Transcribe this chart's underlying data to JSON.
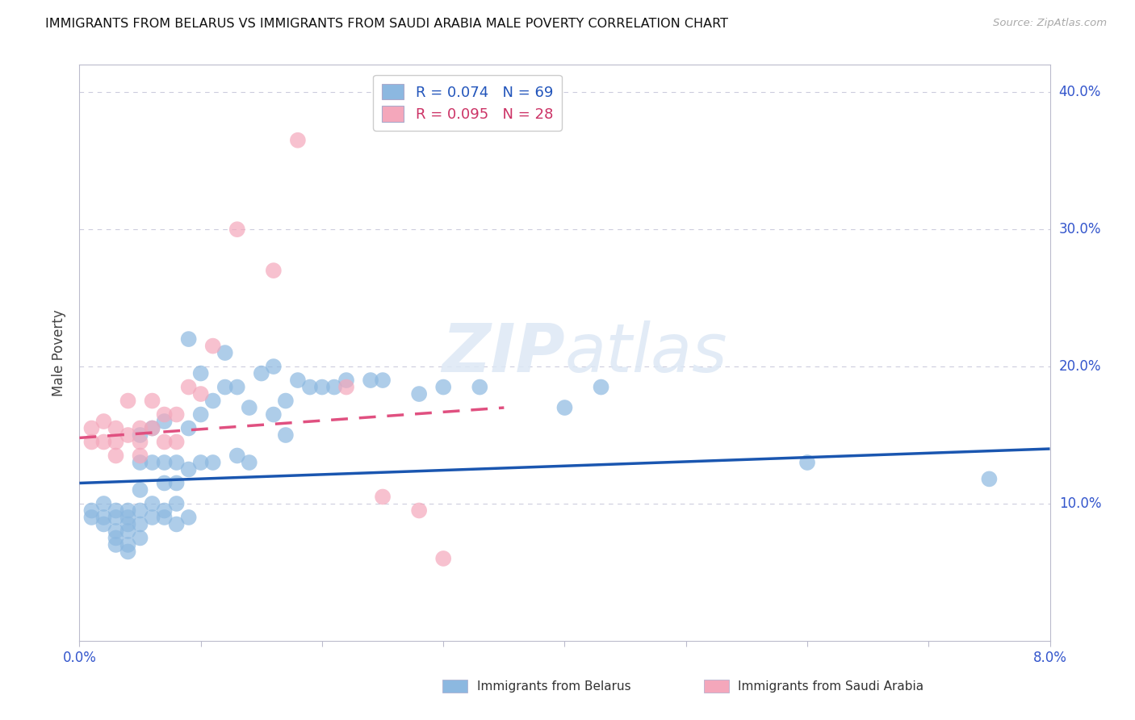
{
  "title": "IMMIGRANTS FROM BELARUS VS IMMIGRANTS FROM SAUDI ARABIA MALE POVERTY CORRELATION CHART",
  "source": "Source: ZipAtlas.com",
  "ylabel": "Male Poverty",
  "watermark": "ZIPatlas",
  "belarus_color": "#8cb8e0",
  "saudi_color": "#f4a7bb",
  "belarus_line_color": "#1a56b0",
  "saudi_line_color": "#e05080",
  "xlim": [
    0.0,
    0.08
  ],
  "ylim": [
    0.0,
    0.42
  ],
  "xticks": [
    0.0,
    0.01,
    0.02,
    0.03,
    0.04,
    0.05,
    0.06,
    0.07,
    0.08
  ],
  "yticks": [
    0.0,
    0.1,
    0.2,
    0.3,
    0.4
  ],
  "belarus_scatter_x": [
    0.001,
    0.001,
    0.002,
    0.002,
    0.002,
    0.003,
    0.003,
    0.003,
    0.003,
    0.003,
    0.004,
    0.004,
    0.004,
    0.004,
    0.004,
    0.004,
    0.005,
    0.005,
    0.005,
    0.005,
    0.005,
    0.005,
    0.006,
    0.006,
    0.006,
    0.006,
    0.007,
    0.007,
    0.007,
    0.007,
    0.007,
    0.008,
    0.008,
    0.008,
    0.008,
    0.009,
    0.009,
    0.009,
    0.009,
    0.01,
    0.01,
    0.01,
    0.011,
    0.011,
    0.012,
    0.012,
    0.013,
    0.013,
    0.014,
    0.014,
    0.015,
    0.016,
    0.016,
    0.017,
    0.017,
    0.018,
    0.019,
    0.02,
    0.021,
    0.022,
    0.024,
    0.025,
    0.028,
    0.03,
    0.033,
    0.04,
    0.043,
    0.06,
    0.075
  ],
  "belarus_scatter_y": [
    0.095,
    0.09,
    0.1,
    0.09,
    0.085,
    0.095,
    0.09,
    0.08,
    0.075,
    0.07,
    0.095,
    0.09,
    0.085,
    0.08,
    0.07,
    0.065,
    0.15,
    0.13,
    0.11,
    0.095,
    0.085,
    0.075,
    0.155,
    0.13,
    0.1,
    0.09,
    0.16,
    0.13,
    0.115,
    0.095,
    0.09,
    0.13,
    0.115,
    0.1,
    0.085,
    0.22,
    0.155,
    0.125,
    0.09,
    0.195,
    0.165,
    0.13,
    0.175,
    0.13,
    0.21,
    0.185,
    0.185,
    0.135,
    0.17,
    0.13,
    0.195,
    0.2,
    0.165,
    0.175,
    0.15,
    0.19,
    0.185,
    0.185,
    0.185,
    0.19,
    0.19,
    0.19,
    0.18,
    0.185,
    0.185,
    0.17,
    0.185,
    0.13,
    0.118
  ],
  "saudi_scatter_x": [
    0.001,
    0.001,
    0.002,
    0.002,
    0.003,
    0.003,
    0.003,
    0.004,
    0.004,
    0.005,
    0.005,
    0.005,
    0.006,
    0.006,
    0.007,
    0.007,
    0.008,
    0.008,
    0.009,
    0.01,
    0.011,
    0.013,
    0.016,
    0.018,
    0.022,
    0.025,
    0.028,
    0.03
  ],
  "saudi_scatter_y": [
    0.155,
    0.145,
    0.16,
    0.145,
    0.155,
    0.145,
    0.135,
    0.175,
    0.15,
    0.155,
    0.145,
    0.135,
    0.175,
    0.155,
    0.165,
    0.145,
    0.165,
    0.145,
    0.185,
    0.18,
    0.215,
    0.3,
    0.27,
    0.365,
    0.185,
    0.105,
    0.095,
    0.06
  ],
  "belarus_trend_x": [
    0.0,
    0.08
  ],
  "belarus_trend_y": [
    0.115,
    0.14
  ],
  "saudi_trend_x": [
    0.0,
    0.035
  ],
  "saudi_trend_y": [
    0.148,
    0.17
  ]
}
